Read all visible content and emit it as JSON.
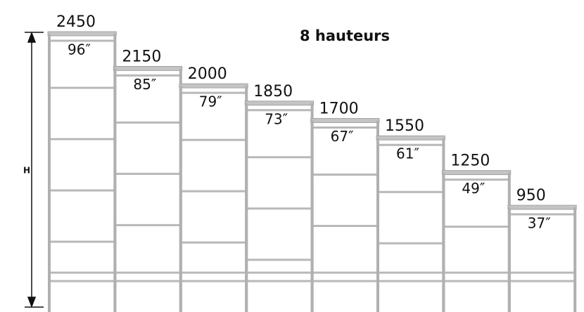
{
  "title": "8 hauteurs",
  "dimension_label": "H",
  "sections": [
    {
      "mm": 2450,
      "inches": "96″"
    },
    {
      "mm": 2150,
      "inches": "85″"
    },
    {
      "mm": 2000,
      "inches": "79″"
    },
    {
      "mm": 1850,
      "inches": "73″"
    },
    {
      "mm": 1700,
      "inches": "67″"
    },
    {
      "mm": 1550,
      "inches": "61″"
    },
    {
      "mm": 1250,
      "inches": "49″"
    },
    {
      "mm": 950,
      "inches": "37″"
    }
  ]
}
